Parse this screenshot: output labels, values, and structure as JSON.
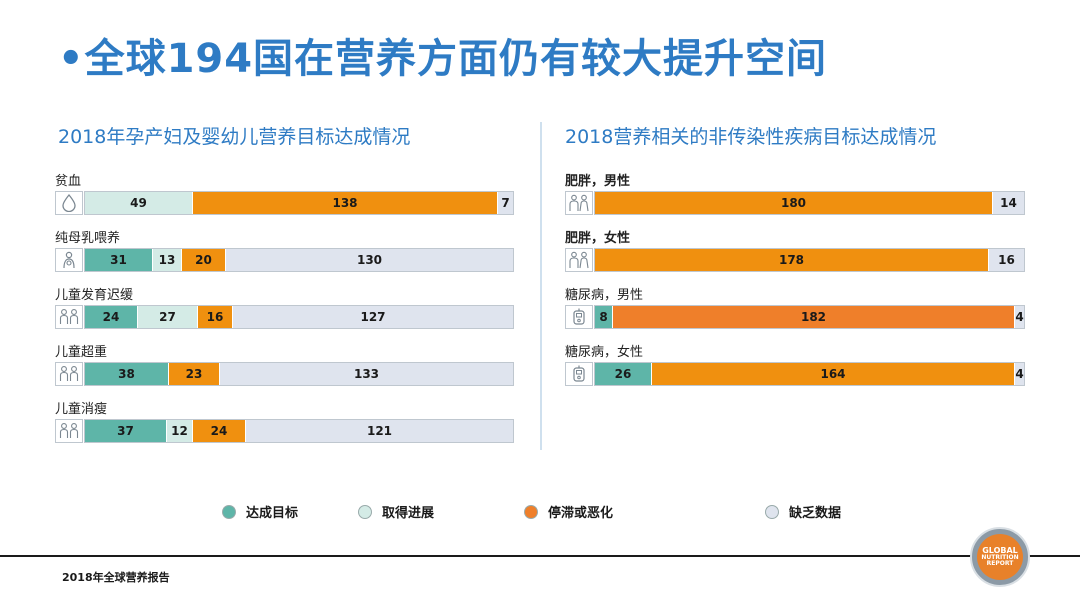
{
  "slide_title": "•全球194国在营养方面仍有较大提升空间",
  "colors": {
    "achieved": "#5eb5a8",
    "progress": "#d4ebe6",
    "stalled": "#f0900f",
    "stalled_alt": "#ef7f2a",
    "no_data": "#dfe4ee",
    "accent": "#2e7bc4"
  },
  "chart_data": [
    {
      "type": "bar",
      "stacked": true,
      "orientation": "horizontal",
      "title": "2018年孕产妇及婴幼儿营养目标达成情况",
      "total": 194,
      "rows": [
        {
          "label": "贫血",
          "bold": false,
          "icon": "drop-icon",
          "segments": [
            {
              "key": "progress",
              "value": 49
            },
            {
              "key": "stalled",
              "value": 138
            },
            {
              "key": "no_data",
              "value": 7
            }
          ]
        },
        {
          "label": "纯母乳喂养",
          "bold": false,
          "icon": "mother-baby-icon",
          "segments": [
            {
              "key": "achieved",
              "value": 31
            },
            {
              "key": "progress",
              "value": 13
            },
            {
              "key": "stalled",
              "value": 20
            },
            {
              "key": "no_data",
              "value": 130
            }
          ]
        },
        {
          "label": "儿童发育迟缓",
          "bold": false,
          "icon": "children-icon",
          "segments": [
            {
              "key": "achieved",
              "value": 24
            },
            {
              "key": "progress",
              "value": 27
            },
            {
              "key": "stalled",
              "value": 16
            },
            {
              "key": "no_data",
              "value": 127
            }
          ]
        },
        {
          "label": "儿童超重",
          "bold": false,
          "icon": "children-icon",
          "segments": [
            {
              "key": "achieved",
              "value": 38
            },
            {
              "key": "stalled",
              "value": 23
            },
            {
              "key": "no_data",
              "value": 133
            }
          ]
        },
        {
          "label": "儿童消瘦",
          "bold": false,
          "icon": "children-icon",
          "segments": [
            {
              "key": "achieved",
              "value": 37
            },
            {
              "key": "progress",
              "value": 12
            },
            {
              "key": "stalled",
              "value": 24
            },
            {
              "key": "no_data",
              "value": 121
            }
          ]
        }
      ]
    },
    {
      "type": "bar",
      "stacked": true,
      "orientation": "horizontal",
      "title": "2018营养相关的非传染性疾病目标达成情况",
      "total": 194,
      "rows": [
        {
          "label": "肥胖，男性",
          "bold": true,
          "icon": "adults-icon",
          "segments": [
            {
              "key": "stalled",
              "value": 180
            },
            {
              "key": "no_data",
              "value": 14
            }
          ]
        },
        {
          "label": "肥胖，女性",
          "bold": true,
          "icon": "adults-icon",
          "segments": [
            {
              "key": "stalled",
              "value": 178
            },
            {
              "key": "no_data",
              "value": 16
            }
          ]
        },
        {
          "label": "糖尿病，男性",
          "bold": false,
          "icon": "glucose-meter-icon",
          "segments": [
            {
              "key": "achieved",
              "value": 8
            },
            {
              "key": "stalled_alt",
              "value": 182
            },
            {
              "key": "no_data",
              "value": 4
            }
          ]
        },
        {
          "label": "糖尿病，女性",
          "bold": false,
          "icon": "glucose-meter-icon",
          "segments": [
            {
              "key": "achieved",
              "value": 26
            },
            {
              "key": "stalled",
              "value": 164
            },
            {
              "key": "no_data",
              "value": 4
            }
          ]
        }
      ]
    }
  ],
  "legend": [
    {
      "key": "achieved",
      "label": "达成目标"
    },
    {
      "key": "progress",
      "label": "取得进展"
    },
    {
      "key": "stalled",
      "label": "停滞或恶化"
    },
    {
      "key": "no_data",
      "label": "缺乏数据"
    }
  ],
  "footer": {
    "text": "2018年全球营养报告"
  },
  "logo": {
    "line1": "GLOBAL",
    "line2": "NUTRITION",
    "line3": "REPORT"
  }
}
